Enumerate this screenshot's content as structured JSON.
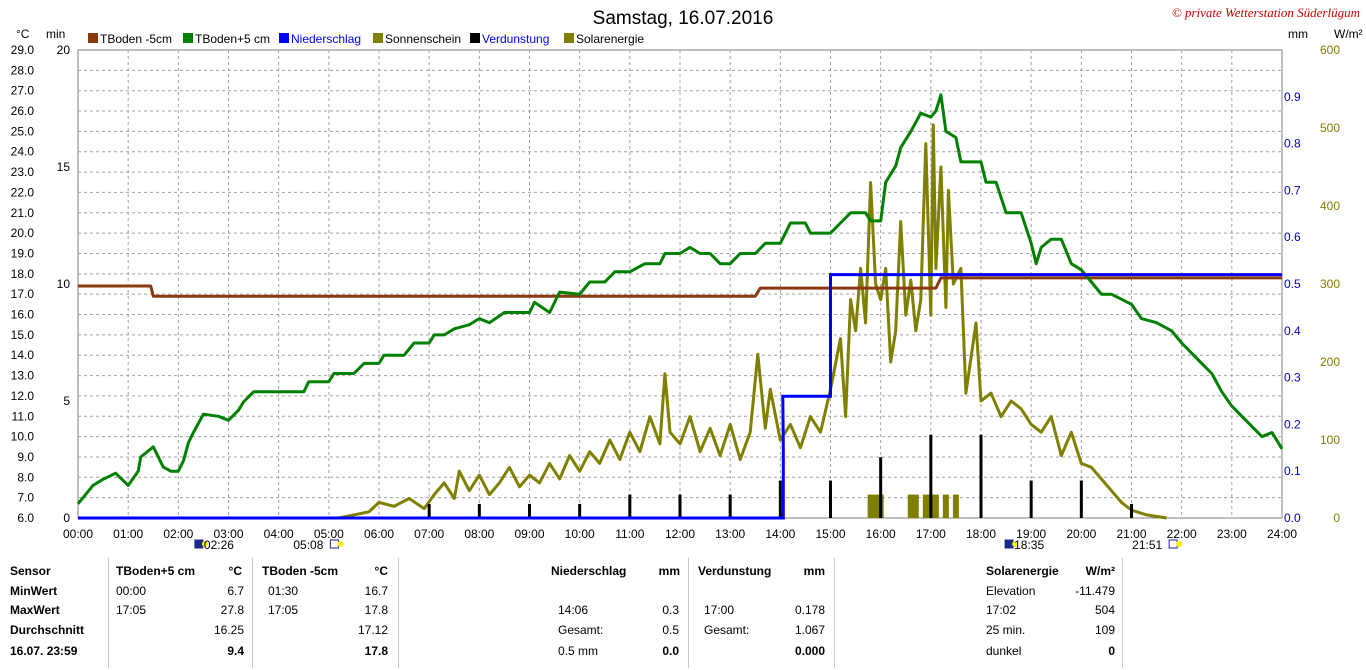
{
  "title": "Samstag, 16.07.2016",
  "copyright": "© private Wetterstation Süderlügum",
  "colors": {
    "tboden_minus": "#8B3A0F",
    "tboden_plus": "#008000",
    "niederschlag": "#0000FF",
    "sonnenschein": "#808000",
    "verdunstung": "#000000",
    "solarenergie": "#808000",
    "grid": "#a0a0a0",
    "axis_blue": "#0000C0"
  },
  "chart_data": {
    "type": "line",
    "title": "Samstag, 16.07.2016",
    "x_unit": "time",
    "x_ticks": [
      "00:00",
      "01:00",
      "02:00",
      "03:00",
      "04:00",
      "05:00",
      "06:00",
      "07:00",
      "08:00",
      "09:00",
      "10:00",
      "11:00",
      "12:00",
      "13:00",
      "14:00",
      "15:00",
      "16:00",
      "17:00",
      "18:00",
      "19:00",
      "20:00",
      "21:00",
      "22:00",
      "23:00",
      "24:00"
    ],
    "xlim": [
      0,
      24
    ],
    "axes": {
      "celsius": {
        "label": "°C",
        "range": [
          6,
          29
        ],
        "ticks": [
          "29.0",
          "28.0",
          "27.0",
          "26.0",
          "25.0",
          "24.0",
          "23.0",
          "22.0",
          "21.0",
          "20.0",
          "19.0",
          "18.0",
          "17.0",
          "16.0",
          "15.0",
          "14.0",
          "13.0",
          "12.0",
          "11.0",
          "10.0",
          "9.0",
          "8.0",
          "7.0",
          "6.0"
        ]
      },
      "minutes": {
        "label": "min",
        "range": [
          0,
          20
        ],
        "ticks": [
          "20",
          "15",
          "10",
          "5",
          "0"
        ]
      },
      "mm": {
        "label": "mm",
        "range": [
          0,
          1
        ],
        "ticks": [
          "0.9",
          "0.8",
          "0.7",
          "0.6",
          "0.5",
          "0.4",
          "0.3",
          "0.2",
          "0.1",
          "0.0"
        ]
      },
      "wm2": {
        "label": "W/m²",
        "range": [
          0,
          600
        ],
        "ticks": [
          "600",
          "500",
          "400",
          "300",
          "200",
          "100",
          "0"
        ]
      }
    },
    "legend": [
      "TBoden -5cm",
      "TBoden+5 cm",
      "Niederschlag",
      "Sonnenschein",
      "Verdunstung",
      "Solarenergie"
    ],
    "legend_placement": "top",
    "sun_events": [
      {
        "label": "02:26",
        "hour": 2.43
      },
      {
        "label": "05:08",
        "hour": 5.13
      },
      {
        "label": "18:35",
        "hour": 18.58
      },
      {
        "label": "21:51",
        "hour": 21.85
      }
    ],
    "series": [
      {
        "name": "TBoden+5 cm",
        "axis": "celsius",
        "points": [
          [
            0,
            6.7
          ],
          [
            0.3,
            7.6
          ],
          [
            0.5,
            7.9
          ],
          [
            0.75,
            8.2
          ],
          [
            1.0,
            7.6
          ],
          [
            1.2,
            8.3
          ],
          [
            1.25,
            9.0
          ],
          [
            1.5,
            9.5
          ],
          [
            1.7,
            8.5
          ],
          [
            1.85,
            8.3
          ],
          [
            2.0,
            8.3
          ],
          [
            2.1,
            8.8
          ],
          [
            2.2,
            9.7
          ],
          [
            2.3,
            10.2
          ],
          [
            2.5,
            11.1
          ],
          [
            2.8,
            11.0
          ],
          [
            3.0,
            10.8
          ],
          [
            3.2,
            11.3
          ],
          [
            3.3,
            11.7
          ],
          [
            3.5,
            12.2
          ],
          [
            4.0,
            12.2
          ],
          [
            4.5,
            12.2
          ],
          [
            4.6,
            12.7
          ],
          [
            5.0,
            12.7
          ],
          [
            5.1,
            13.1
          ],
          [
            5.5,
            13.1
          ],
          [
            5.7,
            13.6
          ],
          [
            6.0,
            13.6
          ],
          [
            6.1,
            14.0
          ],
          [
            6.5,
            14.0
          ],
          [
            6.7,
            14.6
          ],
          [
            7.0,
            14.6
          ],
          [
            7.1,
            15.0
          ],
          [
            7.3,
            15.0
          ],
          [
            7.5,
            15.3
          ],
          [
            7.8,
            15.5
          ],
          [
            8.0,
            15.8
          ],
          [
            8.2,
            15.6
          ],
          [
            8.5,
            16.1
          ],
          [
            9.0,
            16.1
          ],
          [
            9.1,
            16.6
          ],
          [
            9.4,
            16.1
          ],
          [
            9.6,
            17.1
          ],
          [
            10.0,
            17.0
          ],
          [
            10.2,
            17.6
          ],
          [
            10.5,
            17.6
          ],
          [
            10.7,
            18.1
          ],
          [
            11.0,
            18.1
          ],
          [
            11.3,
            18.5
          ],
          [
            11.6,
            18.5
          ],
          [
            11.7,
            19.0
          ],
          [
            12.0,
            19.0
          ],
          [
            12.2,
            19.3
          ],
          [
            12.4,
            19.0
          ],
          [
            12.6,
            19.0
          ],
          [
            12.8,
            18.5
          ],
          [
            13.0,
            18.5
          ],
          [
            13.2,
            19.0
          ],
          [
            13.5,
            19.0
          ],
          [
            13.7,
            19.5
          ],
          [
            14.0,
            19.5
          ],
          [
            14.2,
            20.5
          ],
          [
            14.5,
            20.5
          ],
          [
            14.6,
            20.0
          ],
          [
            15.0,
            20.0
          ],
          [
            15.2,
            20.5
          ],
          [
            15.4,
            21.0
          ],
          [
            15.7,
            21.0
          ],
          [
            15.8,
            20.6
          ],
          [
            16.0,
            20.6
          ],
          [
            16.1,
            22.5
          ],
          [
            16.3,
            23.3
          ],
          [
            16.4,
            24.2
          ],
          [
            16.6,
            25.0
          ],
          [
            16.8,
            25.9
          ],
          [
            17.0,
            25.7
          ],
          [
            17.1,
            26.0
          ],
          [
            17.2,
            26.8
          ],
          [
            17.3,
            25.0
          ],
          [
            17.5,
            24.7
          ],
          [
            17.6,
            23.5
          ],
          [
            18.0,
            23.5
          ],
          [
            18.1,
            22.5
          ],
          [
            18.3,
            22.5
          ],
          [
            18.5,
            21.0
          ],
          [
            18.8,
            21.0
          ],
          [
            19.0,
            19.5
          ],
          [
            19.1,
            18.5
          ],
          [
            19.2,
            19.3
          ],
          [
            19.4,
            19.7
          ],
          [
            19.6,
            19.7
          ],
          [
            19.8,
            18.5
          ],
          [
            20.0,
            18.2
          ],
          [
            20.2,
            17.6
          ],
          [
            20.4,
            17.0
          ],
          [
            20.6,
            17.0
          ],
          [
            21.0,
            16.5
          ],
          [
            21.2,
            15.8
          ],
          [
            21.5,
            15.6
          ],
          [
            21.8,
            15.2
          ],
          [
            22.0,
            14.6
          ],
          [
            22.2,
            14.1
          ],
          [
            22.4,
            13.6
          ],
          [
            22.6,
            13.1
          ],
          [
            22.8,
            12.2
          ],
          [
            23.0,
            11.5
          ],
          [
            23.2,
            11.0
          ],
          [
            23.4,
            10.5
          ],
          [
            23.6,
            10.0
          ],
          [
            23.8,
            10.2
          ],
          [
            24.0,
            9.4
          ]
        ]
      },
      {
        "name": "TBoden -5cm",
        "axis": "celsius",
        "points": [
          [
            0,
            17.4
          ],
          [
            1.45,
            17.4
          ],
          [
            1.5,
            16.9
          ],
          [
            13.5,
            16.9
          ],
          [
            13.6,
            17.3
          ],
          [
            17.1,
            17.3
          ],
          [
            17.2,
            17.8
          ],
          [
            24.0,
            17.8
          ]
        ]
      },
      {
        "name": "Niederschlag",
        "axis": "mm",
        "points": [
          [
            0,
            0
          ],
          [
            14.06,
            0
          ],
          [
            14.06,
            0.15
          ],
          [
            14.05,
            0.26
          ],
          [
            15.0,
            0.26
          ],
          [
            15.0,
            0.52
          ],
          [
            24.0,
            0.52
          ]
        ]
      },
      {
        "name": "Sonnenschein",
        "axis": "minutes",
        "points": [
          [
            15.8,
            1.0
          ],
          [
            15.9,
            1.0
          ],
          [
            16.0,
            1.0
          ],
          [
            16.6,
            1.0
          ],
          [
            16.7,
            1.0
          ],
          [
            16.9,
            1.0
          ],
          [
            17.0,
            1.0
          ],
          [
            17.1,
            1.0
          ],
          [
            17.3,
            1.0
          ],
          [
            17.5,
            1.0
          ]
        ]
      },
      {
        "name": "Verdunstung",
        "axis": "mm",
        "points": [
          [
            7.0,
            0.03
          ],
          [
            8.0,
            0.03
          ],
          [
            9.0,
            0.03
          ],
          [
            10.0,
            0.03
          ],
          [
            11.0,
            0.05
          ],
          [
            12.0,
            0.05
          ],
          [
            13.0,
            0.05
          ],
          [
            14.0,
            0.08
          ],
          [
            15.0,
            0.08
          ],
          [
            16.0,
            0.13
          ],
          [
            17.0,
            0.178
          ],
          [
            18.0,
            0.178
          ],
          [
            19.0,
            0.08
          ],
          [
            20.0,
            0.08
          ],
          [
            21.0,
            0.03
          ]
        ]
      },
      {
        "name": "Solarenergie",
        "axis": "wm2",
        "points": [
          [
            5.2,
            0
          ],
          [
            5.8,
            8
          ],
          [
            6.0,
            20
          ],
          [
            6.3,
            15
          ],
          [
            6.6,
            25
          ],
          [
            6.9,
            12
          ],
          [
            7.1,
            30
          ],
          [
            7.3,
            45
          ],
          [
            7.5,
            25
          ],
          [
            7.6,
            60
          ],
          [
            7.8,
            35
          ],
          [
            8.0,
            55
          ],
          [
            8.2,
            30
          ],
          [
            8.4,
            45
          ],
          [
            8.6,
            65
          ],
          [
            8.8,
            40
          ],
          [
            9.0,
            55
          ],
          [
            9.2,
            45
          ],
          [
            9.4,
            70
          ],
          [
            9.6,
            50
          ],
          [
            9.8,
            80
          ],
          [
            10.0,
            60
          ],
          [
            10.2,
            85
          ],
          [
            10.4,
            70
          ],
          [
            10.6,
            100
          ],
          [
            10.8,
            75
          ],
          [
            11.0,
            110
          ],
          [
            11.2,
            85
          ],
          [
            11.4,
            130
          ],
          [
            11.6,
            95
          ],
          [
            11.7,
            185
          ],
          [
            11.8,
            110
          ],
          [
            12.0,
            95
          ],
          [
            12.2,
            130
          ],
          [
            12.4,
            85
          ],
          [
            12.6,
            115
          ],
          [
            12.8,
            80
          ],
          [
            13.0,
            120
          ],
          [
            13.2,
            75
          ],
          [
            13.4,
            110
          ],
          [
            13.55,
            210
          ],
          [
            13.7,
            115
          ],
          [
            13.8,
            165
          ],
          [
            14.0,
            100
          ],
          [
            14.2,
            120
          ],
          [
            14.4,
            90
          ],
          [
            14.6,
            130
          ],
          [
            14.8,
            110
          ],
          [
            15.0,
            165
          ],
          [
            15.2,
            230
          ],
          [
            15.3,
            130
          ],
          [
            15.4,
            280
          ],
          [
            15.5,
            240
          ],
          [
            15.6,
            320
          ],
          [
            15.7,
            250
          ],
          [
            15.8,
            430
          ],
          [
            15.9,
            300
          ],
          [
            16.0,
            280
          ],
          [
            16.1,
            320
          ],
          [
            16.2,
            200
          ],
          [
            16.3,
            240
          ],
          [
            16.4,
            380
          ],
          [
            16.5,
            260
          ],
          [
            16.6,
            305
          ],
          [
            16.7,
            240
          ],
          [
            16.8,
            280
          ],
          [
            16.9,
            480
          ],
          [
            17.0,
            260
          ],
          [
            17.05,
            504
          ],
          [
            17.1,
            320
          ],
          [
            17.2,
            450
          ],
          [
            17.3,
            270
          ],
          [
            17.35,
            420
          ],
          [
            17.45,
            300
          ],
          [
            17.6,
            320
          ],
          [
            17.7,
            160
          ],
          [
            17.9,
            250
          ],
          [
            18.0,
            150
          ],
          [
            18.2,
            160
          ],
          [
            18.4,
            130
          ],
          [
            18.6,
            150
          ],
          [
            18.8,
            140
          ],
          [
            19.0,
            120
          ],
          [
            19.2,
            110
          ],
          [
            19.4,
            130
          ],
          [
            19.6,
            80
          ],
          [
            19.8,
            110
          ],
          [
            20.0,
            70
          ],
          [
            20.2,
            65
          ],
          [
            20.4,
            50
          ],
          [
            20.6,
            35
          ],
          [
            20.8,
            20
          ],
          [
            21.0,
            10
          ],
          [
            21.3,
            4
          ],
          [
            21.7,
            0
          ]
        ]
      }
    ]
  },
  "table": {
    "sensor_header": "Sensor",
    "row_labels": [
      "MinWert",
      "MaxWert",
      "Durchschnitt",
      "16.07. 23:59"
    ],
    "col1": {
      "header": "TBoden+5 cm",
      "unit": "°C",
      "rows": [
        {
          "time": "00:00",
          "value": "6.7"
        },
        {
          "time": "17:05",
          "value": "27.8"
        },
        {
          "time": "",
          "value": "16.25"
        },
        {
          "time": "",
          "value": "9.4"
        }
      ]
    },
    "col2": {
      "header": "TBoden -5cm",
      "unit": "°C",
      "rows": [
        {
          "time": "01:30",
          "value": "16.7"
        },
        {
          "time": "17:05",
          "value": "17.8"
        },
        {
          "time": "",
          "value": "17.12"
        },
        {
          "time": "",
          "value": "17.8"
        }
      ]
    },
    "col3": {
      "header": "Niederschlag",
      "unit": "mm",
      "rows": [
        {
          "time": "",
          "value": ""
        },
        {
          "time": "14:06",
          "value": "0.3"
        },
        {
          "time": "Gesamt:",
          "value": "0.5"
        },
        {
          "time": "0.5 mm",
          "value": "0.0"
        }
      ]
    },
    "col4": {
      "header": "Verdunstung",
      "unit": "mm",
      "rows": [
        {
          "time": "",
          "value": ""
        },
        {
          "time": "17:00",
          "value": "0.178"
        },
        {
          "time": "Gesamt:",
          "value": "1.067"
        },
        {
          "time": "",
          "value": "0.000"
        }
      ]
    },
    "col5": {
      "header": "Solarenergie",
      "unit": "W/m²",
      "rows": [
        {
          "time": "Elevation",
          "value": "-11.479"
        },
        {
          "time": "17:02",
          "value": "504"
        },
        {
          "time": "25 min.",
          "value": "109"
        },
        {
          "time": "dunkel",
          "value": "0"
        }
      ]
    }
  }
}
